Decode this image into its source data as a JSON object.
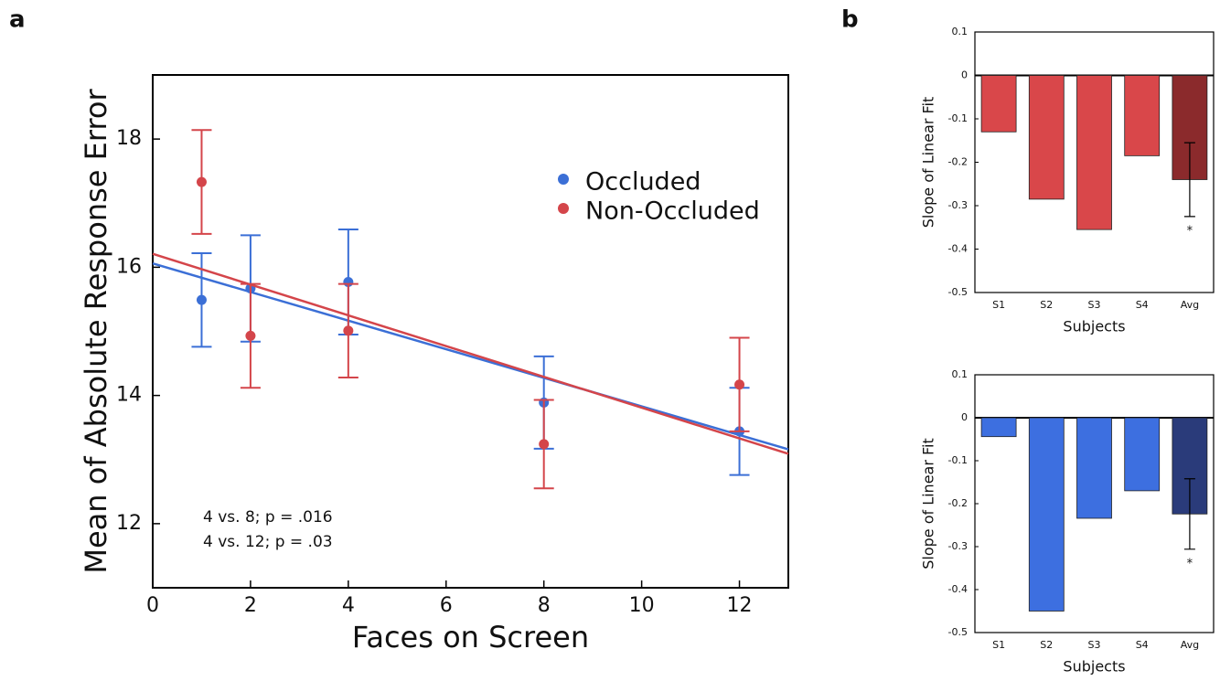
{
  "chart_data": [
    {
      "type": "scatter",
      "panel": "a",
      "xlabel": "Faces on Screen",
      "ylabel": "Mean of Absolute Response Error",
      "xlim": [
        0,
        13
      ],
      "xticks": [
        0,
        2,
        4,
        6,
        8,
        10,
        12
      ],
      "ylim": [
        11,
        19
      ],
      "yticks": [
        12,
        14,
        16,
        18
      ],
      "legend": "upper right",
      "annotations": [
        "4 vs. 8; p = .016",
        "4 vs. 12; p = .03"
      ],
      "series": [
        {
          "name": "Occluded",
          "color": "#3b6fd6",
          "x": [
            1,
            2,
            4,
            8,
            12
          ],
          "values": [
            15.49,
            15.67,
            15.77,
            13.89,
            13.44
          ],
          "errors": [
            0.73,
            0.83,
            0.82,
            0.72,
            0.68
          ],
          "fit": {
            "x": [
              0,
              13
            ],
            "y": [
              16.06,
              13.16
            ]
          }
        },
        {
          "name": "Non-Occluded",
          "color": "#d4454a",
          "x": [
            1,
            2,
            4,
            8,
            12
          ],
          "values": [
            17.33,
            14.93,
            15.01,
            13.24,
            14.17
          ],
          "errors": [
            0.81,
            0.81,
            0.73,
            0.69,
            0.73
          ],
          "fit": {
            "x": [
              0,
              13
            ],
            "y": [
              16.21,
              13.09
            ]
          }
        }
      ]
    },
    {
      "type": "bar",
      "panel": "b",
      "xlabel": "Subjects",
      "ylabel": "Slope of Linear Fit",
      "categories": [
        "S1",
        "S2",
        "S3",
        "S4",
        "Avg"
      ],
      "values": [
        -0.13,
        -0.285,
        -0.355,
        -0.185,
        -0.24
      ],
      "errors": [
        null,
        null,
        null,
        null,
        0.085
      ],
      "markers": [
        null,
        null,
        null,
        null,
        "*"
      ],
      "colors": [
        "#d9474a",
        "#d9474a",
        "#d9474a",
        "#d9474a",
        "#8b2a2c"
      ],
      "ylim": [
        -0.5,
        0.1
      ],
      "yticks": [
        -0.5,
        -0.4,
        -0.3,
        -0.2,
        -0.1,
        0,
        0.1
      ]
    },
    {
      "type": "bar",
      "xlabel": "Subjects",
      "ylabel": "Slope of Linear Fit",
      "categories": [
        "S1",
        "S2",
        "S3",
        "S4",
        "Avg"
      ],
      "values": [
        -0.044,
        -0.45,
        -0.234,
        -0.17,
        -0.224
      ],
      "errors": [
        null,
        null,
        null,
        null,
        0.082
      ],
      "markers": [
        null,
        null,
        null,
        null,
        "*"
      ],
      "colors": [
        "#3d6fe0",
        "#3d6fe0",
        "#3d6fe0",
        "#3d6fe0",
        "#2a3b7a"
      ],
      "ylim": [
        -0.5,
        0.1
      ],
      "yticks": [
        -0.5,
        -0.4,
        -0.3,
        -0.2,
        -0.1,
        0,
        0.1
      ]
    }
  ]
}
